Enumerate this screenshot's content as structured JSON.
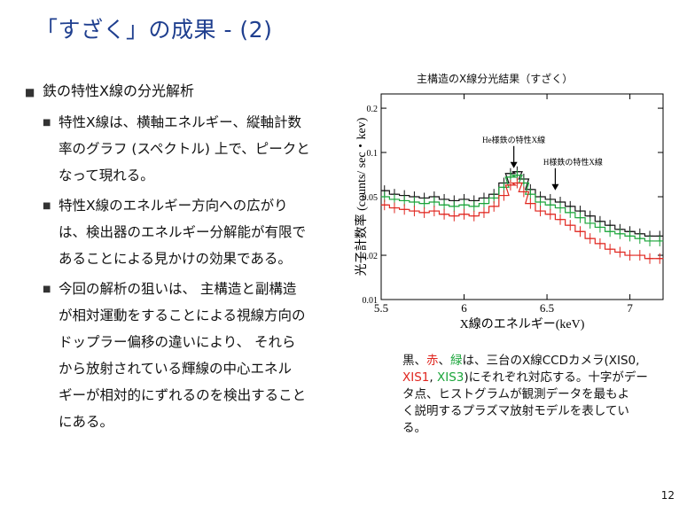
{
  "title": "「すざく」の成果 - (2)",
  "bullets": [
    {
      "text": "鉄の特性X線の分光解析",
      "sub": [
        {
          "lines": [
            "特性X線は、横軸エネルギー、縦軸計数",
            "率のグラフ (スペクトル) 上で、ピークと",
            "なって現れる。"
          ]
        },
        {
          "lines": [
            "特性X線のエネルギー方向への広がり",
            "は、検出器のエネルギー分解能が有限で",
            "あることによる見かけの効果である。"
          ]
        },
        {
          "lines": [
            "今回の解析の狙いは、 主構造と副構造",
            "が相対運動をすることによる視線方向の",
            "ドップラー偏移の違いにより、 それら",
            "から放射されている輝線の中心エネル",
            "ギーが相対的にずれるのを検出すること",
            "にある。"
          ]
        }
      ]
    }
  ],
  "chart_data": {
    "type": "scatter",
    "title": "主構造のX線分光結果（すざく）",
    "xlabel": "X線のエネルギー(keV)",
    "ylabel": "光子計数率 (counts/ sec・kev)",
    "xlim": [
      5.5,
      7.2
    ],
    "ylim": [
      0.01,
      0.25
    ],
    "yscale": "log",
    "xticks": [
      "5.5",
      "6",
      "6.5",
      "7"
    ],
    "xtick_values": [
      5.5,
      6.0,
      6.5,
      7.0
    ],
    "yticks": [
      "0.2",
      "0.1",
      "0.05",
      "0.02",
      "0.01"
    ],
    "ytick_values": [
      0.2,
      0.1,
      0.05,
      0.02,
      0.01
    ],
    "annotations": [
      {
        "text": "He様鉄の特性X線",
        "x": 6.3,
        "y": 0.075
      },
      {
        "text": "H様鉄の特性X線",
        "x": 6.55,
        "y": 0.053
      }
    ],
    "series": [
      {
        "color": "#111111",
        "x": [
          5.52,
          5.58,
          5.64,
          5.7,
          5.76,
          5.82,
          5.88,
          5.94,
          6.0,
          6.06,
          6.12,
          6.18,
          6.24,
          6.28,
          6.32,
          6.36,
          6.4,
          6.46,
          6.52,
          6.58,
          6.64,
          6.7,
          6.76,
          6.82,
          6.88,
          6.94,
          7.0,
          7.06,
          7.12,
          7.18
        ],
        "y": [
          0.055,
          0.052,
          0.051,
          0.05,
          0.049,
          0.05,
          0.048,
          0.047,
          0.048,
          0.047,
          0.049,
          0.052,
          0.062,
          0.072,
          0.074,
          0.066,
          0.056,
          0.05,
          0.048,
          0.046,
          0.043,
          0.04,
          0.037,
          0.034,
          0.032,
          0.03,
          0.029,
          0.028,
          0.027,
          0.027
        ]
      },
      {
        "color": "#1aa53a",
        "x": [
          5.52,
          5.58,
          5.64,
          5.7,
          5.76,
          5.82,
          5.88,
          5.94,
          6.0,
          6.06,
          6.12,
          6.18,
          6.24,
          6.28,
          6.32,
          6.36,
          6.4,
          6.46,
          6.52,
          6.58,
          6.64,
          6.7,
          6.76,
          6.82,
          6.88,
          6.94,
          7.0,
          7.06,
          7.12,
          7.18
        ],
        "y": [
          0.05,
          0.048,
          0.047,
          0.046,
          0.045,
          0.046,
          0.044,
          0.043,
          0.044,
          0.043,
          0.045,
          0.049,
          0.058,
          0.068,
          0.07,
          0.062,
          0.052,
          0.046,
          0.044,
          0.042,
          0.039,
          0.036,
          0.033,
          0.031,
          0.029,
          0.028,
          0.027,
          0.026,
          0.025,
          0.025
        ]
      },
      {
        "color": "#e0261f",
        "x": [
          5.52,
          5.58,
          5.64,
          5.7,
          5.76,
          5.82,
          5.88,
          5.94,
          6.0,
          6.06,
          6.12,
          6.18,
          6.24,
          6.28,
          6.32,
          6.36,
          6.4,
          6.46,
          6.52,
          6.58,
          6.64,
          6.7,
          6.76,
          6.82,
          6.88,
          6.94,
          7.0,
          7.06,
          7.12,
          7.18
        ],
        "y": [
          0.044,
          0.042,
          0.041,
          0.04,
          0.039,
          0.04,
          0.038,
          0.037,
          0.038,
          0.037,
          0.039,
          0.043,
          0.051,
          0.06,
          0.062,
          0.054,
          0.045,
          0.04,
          0.038,
          0.035,
          0.032,
          0.029,
          0.026,
          0.024,
          0.022,
          0.021,
          0.02,
          0.02,
          0.019,
          0.019
        ]
      }
    ]
  },
  "caption": {
    "l1_pre": "黒、",
    "l1_red": "赤",
    "l1_mid": "、",
    "l1_green": "緑",
    "l1_post": "は、三台のX線CCDカメラ(XIS0,",
    "l2_red": "XIS1",
    "l2_mid": ", ",
    "l2_green": "XIS3",
    "l2_post": ")にそれぞれ対応する。十字がデー",
    "l3": "タ点、ヒストグラムが観測データを最もよ",
    "l4": "く説明するプラズマ放射モデルを表してい",
    "l5": "る。"
  },
  "page_number": "12"
}
